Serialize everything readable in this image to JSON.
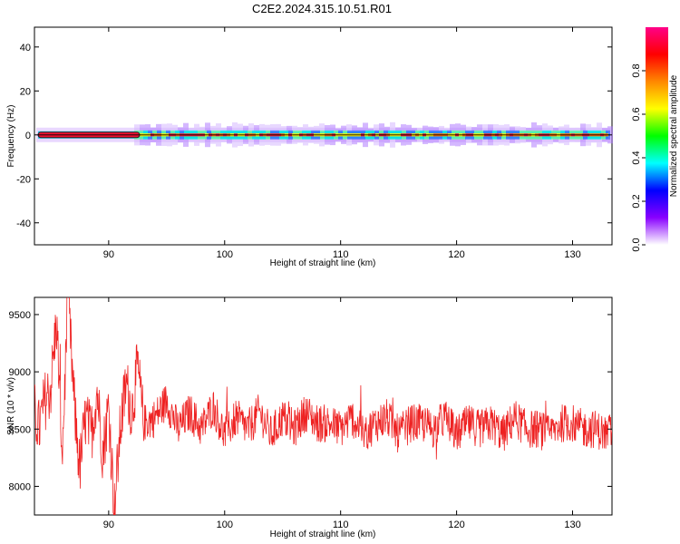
{
  "title": "C2E2.2024.315.10.51.R01",
  "colors": {
    "snr_line": "#ee2222",
    "axis": "#000000"
  },
  "chart_data": [
    {
      "type": "heatmap",
      "xlabel": "Height of straight line (km)",
      "ylabel": "Frequency (Hz)",
      "xlim": [
        83.6,
        133.4
      ],
      "ylim": [
        -50,
        49
      ],
      "x_ticks": [
        90,
        100,
        110,
        120,
        130
      ],
      "y_ticks": [
        -40,
        -20,
        0,
        20,
        40
      ],
      "x_tick_labels": [
        "90",
        "100",
        "110",
        "120",
        "130"
      ],
      "y_tick_labels": [
        "-40",
        "-20",
        "0",
        "20",
        "40"
      ],
      "description_band": "energy concentrated near 0 Hz across all heights",
      "colorbar": {
        "label": "Normalized spectral amplitude",
        "range": [
          0,
          1
        ],
        "ticks": [
          0.0,
          0.2,
          0.4,
          0.6,
          0.8
        ],
        "tick_labels": [
          "0.0",
          "0.2",
          "0.4",
          "0.6",
          "0.8"
        ],
        "colormap": [
          "#ffffff",
          "#8800ff",
          "#0000ff",
          "#00ffff",
          "#00ff00",
          "#ffff00",
          "#ff8800",
          "#ff0000",
          "#ff0088"
        ]
      }
    },
    {
      "type": "line",
      "xlabel": "Height of straight line (km)",
      "ylabel": "SNR (10 * v/v)",
      "xlim": [
        83.6,
        133.4
      ],
      "ylim": [
        7750,
        9650
      ],
      "x_ticks": [
        90,
        100,
        110,
        120,
        130
      ],
      "y_ticks": [
        8000,
        8500,
        9000,
        9500
      ],
      "x_tick_labels": [
        "90",
        "100",
        "110",
        "120",
        "130"
      ],
      "y_tick_labels": [
        "8000",
        "8500",
        "9000",
        "9500"
      ],
      "series": [
        {
          "x": [
            83.6,
            84.0,
            84.5,
            85.0,
            85.5,
            86.0,
            86.5,
            87.0,
            87.5,
            88.0,
            88.5,
            89.0,
            89.5,
            90.0,
            90.5,
            91.0,
            91.5,
            92.0,
            92.5,
            93.0,
            94.0,
            95.0,
            96.0,
            97.0,
            98.0,
            99.0,
            100.0,
            101.0,
            102.0,
            103.0,
            104.0,
            105.0,
            106.0,
            107.0,
            108.0,
            109.0,
            110.0,
            111.0,
            112.0,
            113.0,
            114.0,
            115.0,
            116.0,
            117.0,
            118.0,
            119.0,
            120.0,
            121.0,
            122.0,
            123.0,
            124.0,
            125.0,
            126.0,
            127.0,
            128.0,
            129.0,
            130.0,
            131.0,
            132.0,
            133.0,
            133.4
          ],
          "y": [
            8650,
            8500,
            8750,
            8850,
            9450,
            8300,
            9650,
            8750,
            8150,
            8600,
            8450,
            8850,
            8300,
            8700,
            7800,
            8500,
            8900,
            8650,
            9050,
            8550,
            8600,
            8750,
            8500,
            8650,
            8500,
            8700,
            8450,
            8600,
            8500,
            8650,
            8450,
            8600,
            8500,
            8650,
            8550,
            8550,
            8500,
            8600,
            8450,
            8550,
            8600,
            8450,
            8550,
            8550,
            8500,
            8600,
            8450,
            8550,
            8500,
            8550,
            8450,
            8600,
            8500,
            8500,
            8450,
            8550,
            8550,
            8500,
            8500,
            8450,
            8500
          ],
          "noise_amplitude": 170,
          "n_points": 1300
        }
      ]
    }
  ]
}
